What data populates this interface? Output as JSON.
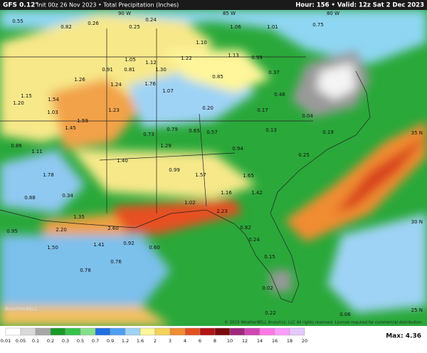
{
  "header": {
    "model": "GFS 0.12°",
    "title": "Init 00z 26 Nov 2023 • Total Precipitation (Inches)",
    "valid": "Hour: 156 • Valid: 12z Sat 2 Dec 2023"
  },
  "map": {
    "lon_labels": [
      "90 W",
      "85 W",
      "80 W"
    ],
    "lat_labels": [
      "35 N",
      "30 N",
      "25 N"
    ],
    "point_values": [
      "0.55",
      "0.82",
      "0.26",
      "0.25",
      "0.24",
      "1.10",
      "1.06",
      "1.01",
      "0.75",
      "1.05",
      "1.12",
      "1.22",
      "1.13",
      "0.99",
      "0.91",
      "0.81",
      "1.76",
      "1.30",
      "1.26",
      "1.24",
      "1.07",
      "0.85",
      "0.37",
      "0.46",
      "1.54",
      "1.15",
      "1.20",
      "1.03",
      "1.23",
      "0.20",
      "0.17",
      "0.04",
      "1.59",
      "1.45",
      "0.73",
      "0.79",
      "0.65",
      "0.57",
      "0.13",
      "0.19",
      "0.86",
      "1.11",
      "0.94",
      "1.29",
      "1.40",
      "0.25",
      "0.99",
      "1.57",
      "1.65",
      "1.78",
      "1.16",
      "1.42",
      "0.88",
      "0.34",
      "1.02",
      "2.23",
      "1.35",
      "2.20",
      "2.60",
      "0.95",
      "1.50",
      "1.41",
      "0.92",
      "0.60",
      "0.82",
      "0.24",
      "0.15",
      "0.78",
      "0.76",
      "0.02",
      "0.22",
      "0.06"
    ],
    "logo": "WeatherBELL",
    "copyright": "© 2023 WeatherBELL Analytics, LLC All rights reserved. License required for commercial distribution."
  },
  "legend": {
    "labels": [
      "0.01",
      "0.05",
      "0.1",
      "0.2",
      "0.3",
      "0.5",
      "0.7",
      "0.9",
      "1.2",
      "1.6",
      "2",
      "3",
      "4",
      "6",
      "8",
      "10",
      "12",
      "14",
      "16",
      "18",
      "20"
    ],
    "colors": [
      "#ffffff",
      "#d9d9d9",
      "#a6a6a6",
      "#1a9a2a",
      "#38c24a",
      "#86e08a",
      "#1f6fe0",
      "#4d9ff0",
      "#9fd3f5",
      "#fff59a",
      "#f5d25a",
      "#f08c32",
      "#e0501e",
      "#b41414",
      "#7a0a0a",
      "#a0287c",
      "#d246b4",
      "#ff78e6",
      "#ff9cff",
      "#e6c8ff"
    ],
    "max": "Max: 4.36"
  }
}
